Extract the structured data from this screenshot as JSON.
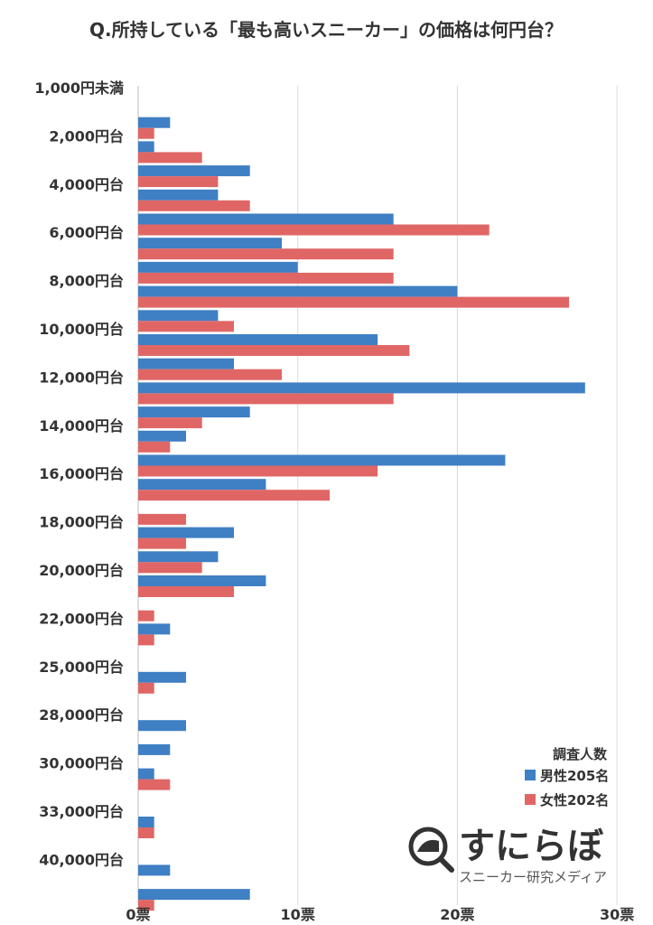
{
  "chart_data": {
    "type": "bar",
    "orientation": "horizontal",
    "title": "Q.所持している「最も高いスニーカー」の価格は何円台？",
    "categories": [
      "1,000円未満",
      "",
      "2,000円台",
      "",
      "4,000円台",
      "",
      "6,000円台",
      "",
      "8,000円台",
      "",
      "10,000円台",
      "",
      "12,000円台",
      "",
      "14,000円台",
      "",
      "16,000円台",
      "",
      "18,000円台",
      "",
      "20,000円台",
      "",
      "22,000円台",
      "",
      "25,000円台",
      "",
      "28,000円台",
      "",
      "30,000円台",
      "",
      "33,000円台",
      "",
      "40,000円台",
      ""
    ],
    "series": [
      {
        "name": "男性205名",
        "color": "#3f7fc4",
        "values": [
          0,
          2,
          1,
          7,
          5,
          16,
          9,
          10,
          20,
          5,
          15,
          6,
          28,
          7,
          3,
          23,
          8,
          0,
          6,
          5,
          8,
          0,
          2,
          0,
          3,
          0,
          3,
          2,
          1,
          0,
          1,
          0,
          2,
          7
        ]
      },
      {
        "name": "女性202名",
        "color": "#e06666",
        "values": [
          0,
          1,
          4,
          5,
          7,
          22,
          16,
          16,
          27,
          6,
          17,
          9,
          16,
          4,
          2,
          15,
          12,
          3,
          3,
          4,
          6,
          1,
          1,
          0,
          1,
          0,
          0,
          0,
          2,
          0,
          1,
          0,
          0,
          1
        ]
      }
    ],
    "xticks": [
      "0票",
      "10票",
      "20票",
      "30票"
    ],
    "xlim": [
      0,
      30
    ],
    "legend_title": "調査人数",
    "legend_position": "bottom-right",
    "grid": true
  },
  "logo": {
    "name": "すにらぼ",
    "tagline": "スニーカー研究メディア"
  }
}
